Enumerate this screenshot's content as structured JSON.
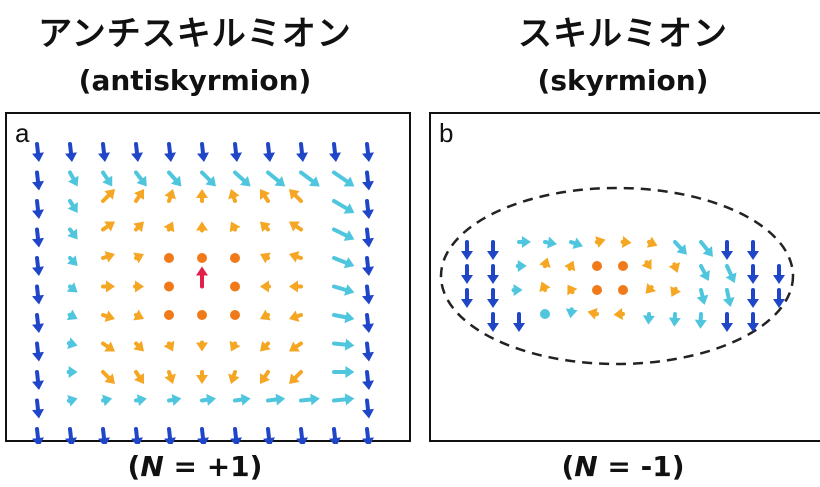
{
  "left": {
    "title_jp": "アンチスキルミオン",
    "title_en": "(antiskyrmion)",
    "panel_label": "a",
    "footer_open": "(",
    "footer_n": "N",
    "footer_value": " = +1)"
  },
  "right": {
    "title_jp": "スキルミオン",
    "title_en": "(skyrmion)",
    "panel_label": "b",
    "footer_open": "(",
    "footer_n": "N",
    "footer_value": " = -1)"
  },
  "colors": {
    "down": "#1f45c8",
    "cyan": "#4fc6de",
    "orange": "#f5a623",
    "deep_orange": "#f07a1a",
    "red": "#e0204a"
  }
}
